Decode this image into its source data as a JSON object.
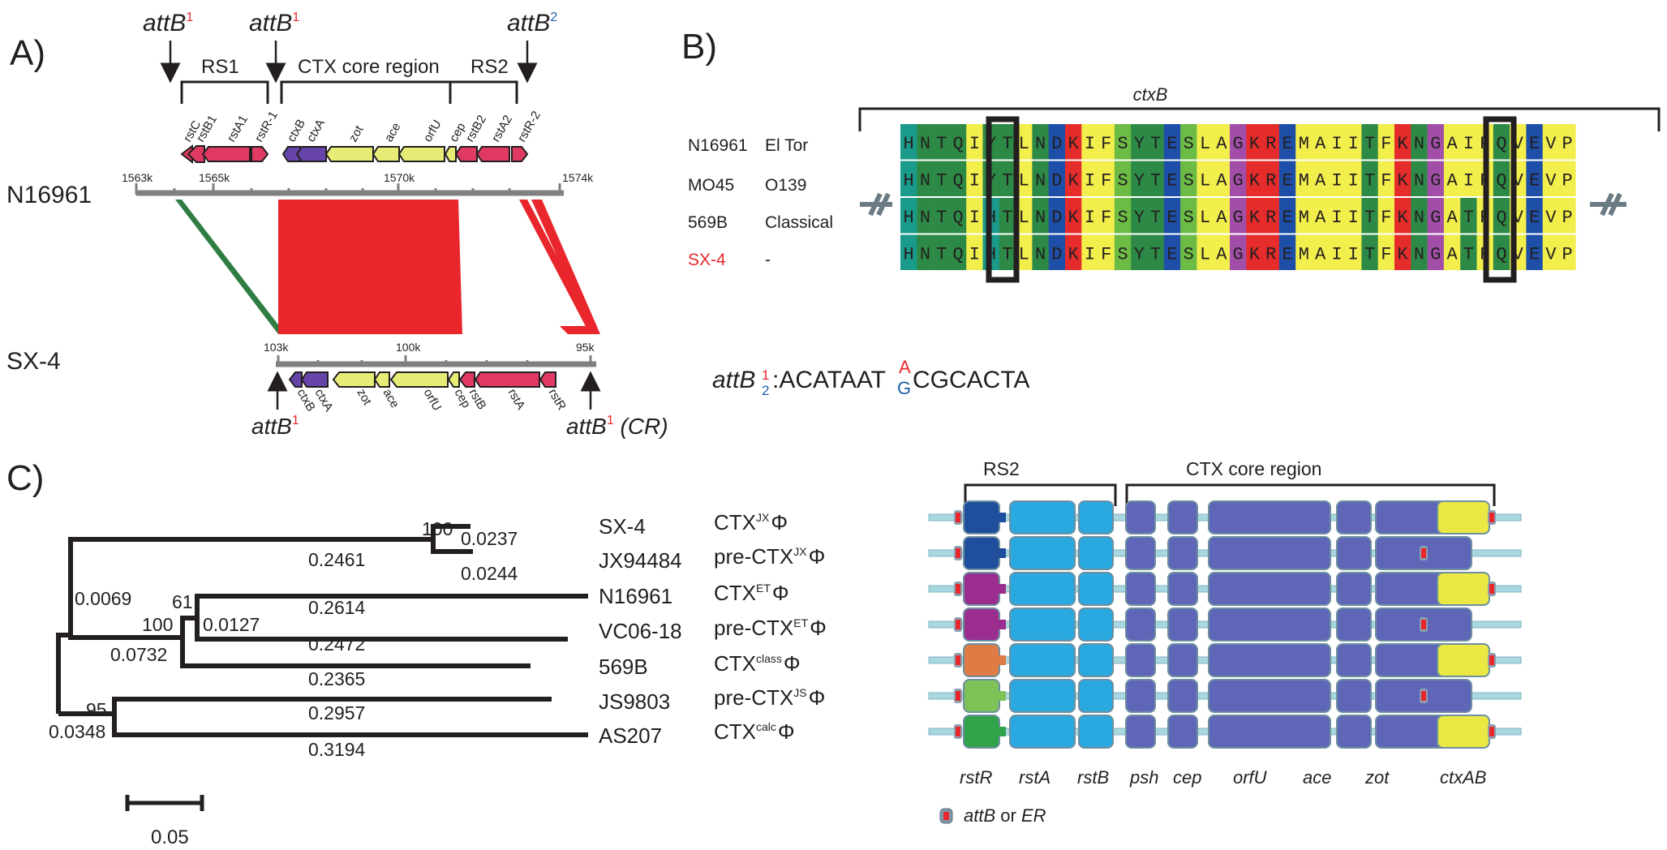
{
  "panels": {
    "a": "A)",
    "b": "B)",
    "c": "C)"
  },
  "panel_a": {
    "att_top": [
      {
        "base": "attB",
        "sup": "1",
        "sup_color": "#e8262b"
      },
      {
        "base": "attB",
        "sup": "1",
        "sup_color": "#e8262b"
      },
      {
        "base": "attB",
        "sup": "2",
        "sup_color": "#1f5fa8"
      }
    ],
    "regions_top": [
      "RS1",
      "CTX core region",
      "RS2"
    ],
    "genes_top": [
      "rstC",
      "rstB1",
      "rstA1",
      "rstR-1",
      "ctxB",
      "ctxA",
      "zot",
      "ace",
      "orfU",
      "cep",
      "rstB2",
      "rstA2",
      "rstR-2"
    ],
    "strain_top": "N16961",
    "ticks_top": [
      "1563k",
      "1565k",
      "1570k",
      "1574k"
    ],
    "strain_bottom": "SX-4",
    "ticks_bottom": [
      "103k",
      "100k",
      "95k"
    ],
    "genes_bottom": [
      "ctxB",
      "ctxA",
      "zot",
      "ace",
      "orfU",
      "cep",
      "rstB",
      "rstA",
      "rstR"
    ],
    "att_bottom": [
      {
        "base": "attB",
        "sup": "1",
        "suffix": ""
      },
      {
        "base": "attB",
        "sup": "1",
        "suffix": " (CR)"
      }
    ]
  },
  "panel_b": {
    "gene": "ctxB",
    "rows": [
      {
        "strain": "N16961",
        "type": "El Tor",
        "color": "#231f20"
      },
      {
        "strain": "MO45",
        "type": "O139",
        "color": "#231f20"
      },
      {
        "strain": "569B",
        "type": "Classical",
        "color": "#231f20"
      },
      {
        "strain": "SX-4",
        "type": "-",
        "color": "#e8262b"
      }
    ],
    "sequences": [
      "HNTQIYTLNDKIFSYTESLAGKREMAIITFKNGAIFQVEVP",
      "HNTQIYTLNDKIFSYTESLAGKREMAIITFKNGAIFQVEVP",
      "HNTQIHTLNDKIFSYTESLAGKREMAIITFKNGATFQVEVP",
      "HNTQIHTLNDKIFSYTESLAGKREMAIITFKNGATFQVEVP"
    ],
    "att_label": {
      "base": "attB",
      "sup": "1",
      "sub": "2"
    },
    "att_seq": {
      "prefix": ":ACATAAT",
      "top": "A",
      "bottom": "G",
      "suffix": "CGCACTA"
    }
  },
  "panel_c": {
    "tree": {
      "tips": [
        {
          "name": "SX-4",
          "phage": "CTX",
          "sup": "JX",
          "suffix": "Φ"
        },
        {
          "name": "JX94484",
          "phage": "pre-CTX",
          "sup": "JX",
          "suffix": "Φ"
        },
        {
          "name": "N16961",
          "phage": "CTX",
          "sup": "ET",
          "suffix": "Φ"
        },
        {
          "name": "VC06-18",
          "phage": "pre-CTX",
          "sup": "ET",
          "suffix": "Φ"
        },
        {
          "name": "569B",
          "phage": "CTX",
          "sup": "class",
          "suffix": "Φ"
        },
        {
          "name": "JS9803",
          "phage": "pre-CTX",
          "sup": "JS",
          "suffix": "Φ"
        },
        {
          "name": "AS207",
          "phage": "CTX",
          "sup": "calc",
          "suffix": "Φ"
        }
      ],
      "branch_lengths": [
        "0.0237",
        "0.0244",
        "0.2461",
        "0.2614",
        "0.2472",
        "0.0127",
        "0.2365",
        "0.0732",
        "0.0069",
        "0.2957",
        "0.3194",
        "0.0348"
      ],
      "bootstrap": [
        "100",
        "61",
        "100",
        "95"
      ],
      "scale_bar": "0.05"
    },
    "regions": [
      "RS2",
      "CTX core region"
    ],
    "gene_labels": [
      "rstR",
      "rstA",
      "rstB",
      "psh",
      "cep",
      "orfU",
      "ace",
      "zot",
      "ctxAB"
    ],
    "rstR_colors": [
      "#1f4e9c",
      "#1f4e9c",
      "#9b2d8e",
      "#9b2d8e",
      "#e07b45",
      "#7dc257",
      "#2fa24a"
    ],
    "has_ctxAB": [
      true,
      false,
      true,
      false,
      true,
      false,
      true
    ],
    "legend": {
      "a": "attB",
      "b": " or ",
      "c": "ER"
    }
  },
  "aa_colors": {
    "H": "#1a9a8a",
    "N": "#2d8a46",
    "T": "#2d8a46",
    "Q": "#2d8a46",
    "I": "#f2ee4c",
    "Y": "#2d8a46",
    "L": "#f2ee4c",
    "D": "#1e4fa8",
    "K": "#e62b2b",
    "F": "#f2ee4c",
    "S": "#6cbb45",
    "E": "#1e4fa8",
    "A": "#f2ee4c",
    "G": "#a24ea8",
    "R": "#e62b2b",
    "M": "#f2ee4c",
    "V": "#f2ee4c",
    "P": "#f2ee4c"
  }
}
